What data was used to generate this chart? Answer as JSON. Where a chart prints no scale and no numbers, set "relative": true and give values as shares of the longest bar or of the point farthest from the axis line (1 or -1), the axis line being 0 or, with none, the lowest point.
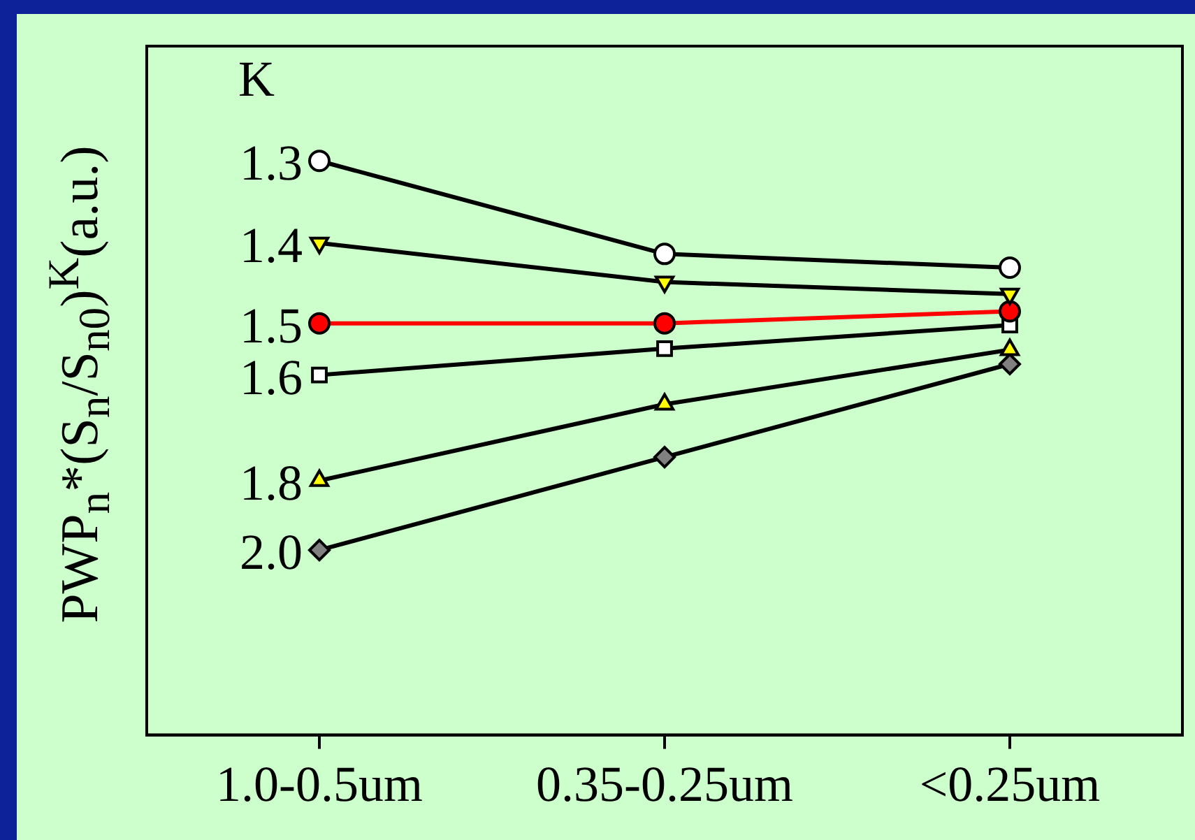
{
  "chart_data": {
    "type": "line",
    "relative": true,
    "ylabel": "PWP$_{n}$*(S$_{n}$/S$_{n0}$)$^{K}$(a.u.)",
    "legend_title": "K",
    "categories": [
      "1.0-0.5um",
      "0.35-0.25um",
      "<0.25um"
    ],
    "legend": false,
    "grid": false,
    "series": [
      {
        "name": "1.3",
        "color": "#000000",
        "marker": "circle",
        "colors": [
          "#ffffff",
          "#ffffff",
          "#ffffff"
        ],
        "values": [
          1,
          0.838,
          0.814
        ]
      },
      {
        "name": "1.4",
        "color": "#000000",
        "marker": "triangle-down",
        "colors": [
          "#ffff00",
          "#ffff00",
          "#ffff00"
        ],
        "values": [
          0.857,
          0.789,
          0.768
        ]
      },
      {
        "name": "1.5",
        "color": "#ff0000",
        "marker": "circle",
        "colors": [
          "#ff0000",
          "#ff0000",
          "#ff0000"
        ],
        "values": [
          0.717,
          0.717,
          0.738
        ]
      },
      {
        "name": "1.6",
        "color": "#000000",
        "marker": "square",
        "colors": [
          "#ffffff",
          "#ffffff",
          "#ffffff"
        ],
        "values": [
          0.627,
          0.673,
          0.714
        ]
      },
      {
        "name": "1.8",
        "color": "#000000",
        "marker": "triangle",
        "colors": [
          "#ffff00",
          "#ffff00",
          "#ffff00"
        ],
        "values": [
          0.443,
          0.576,
          0.671
        ]
      },
      {
        "name": "2.0",
        "color": "#000000",
        "marker": "diamond",
        "colors": [
          "#808080",
          "#808080",
          "#808080"
        ],
        "values": [
          0.322,
          0.484,
          0.646
        ]
      }
    ]
  }
}
